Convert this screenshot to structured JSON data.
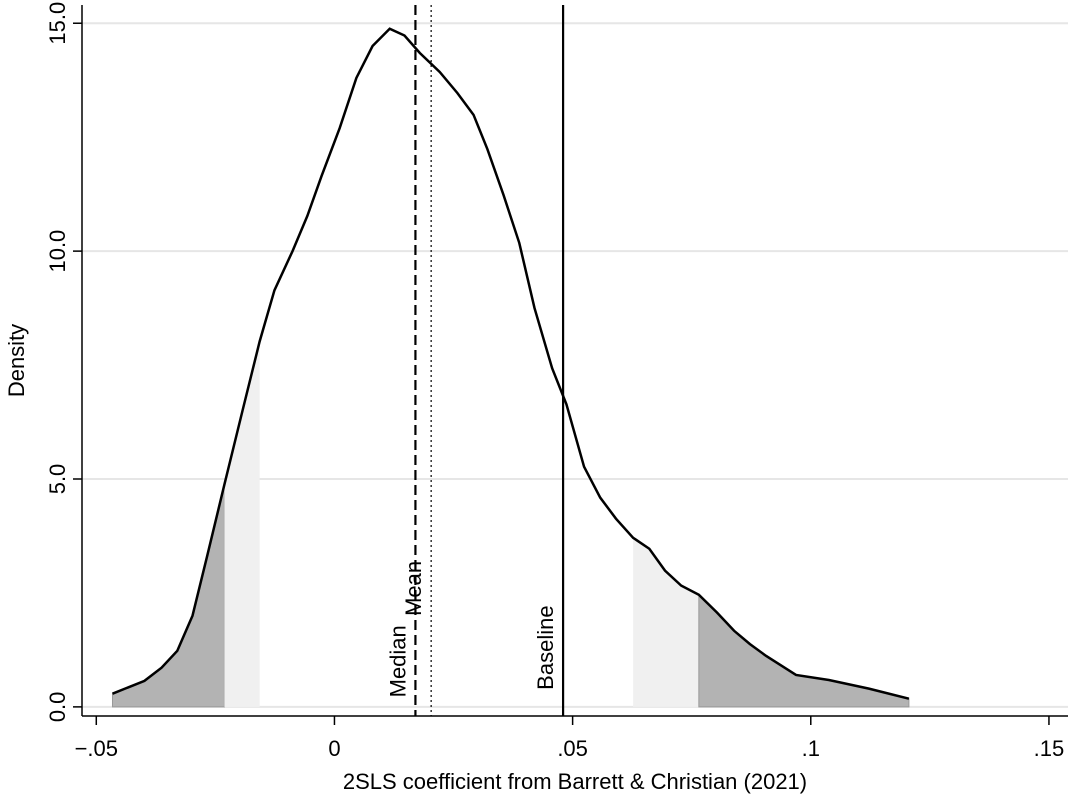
{
  "chart_data": {
    "type": "line",
    "x_label": "2SLS coefficient from Barrett & Christian (2021)",
    "y_label": "Density",
    "xlim": [
      -0.053,
      0.154
    ],
    "ylim": [
      -0.2,
      15.4
    ],
    "xticks": [
      {
        "value": -0.05,
        "label": "−.05"
      },
      0,
      {
        "value": 0.05,
        "label": ".05"
      },
      {
        "value": 0.1,
        "label": ".1"
      },
      {
        "value": 0.15,
        "label": ".15"
      }
    ],
    "yticks": [
      {
        "value": 0,
        "label": "0.0"
      },
      {
        "value": 5,
        "label": "5.0"
      },
      {
        "value": 10,
        "label": "10.0"
      },
      {
        "value": 15,
        "label": "15.0"
      }
    ],
    "grid": true,
    "series": [
      {
        "color": "#000000",
        "x": [
          -0.0466,
          -0.0399,
          -0.0363,
          -0.033,
          -0.0298,
          -0.0267,
          -0.0231,
          -0.0193,
          -0.0157,
          -0.0126,
          -0.0088,
          -0.0057,
          -0.0027,
          0.0011,
          0.0046,
          0.008,
          0.0116,
          0.0147,
          0.0179,
          0.0221,
          0.0258,
          0.0292,
          0.0321,
          0.0355,
          0.0388,
          0.042,
          0.0457,
          0.0487,
          0.0524,
          0.0558,
          0.0591,
          0.0627,
          0.0661,
          0.0694,
          0.0728,
          0.0765,
          0.0803,
          0.0839,
          0.0872,
          0.0906,
          0.0969,
          0.1038,
          0.1122,
          0.1206
        ],
        "values": [
          0.29,
          0.57,
          0.86,
          1.23,
          2.0,
          3.32,
          4.88,
          6.5,
          8.02,
          9.14,
          10.0,
          10.77,
          11.65,
          12.7,
          13.8,
          14.5,
          14.88,
          14.73,
          14.35,
          13.93,
          13.47,
          12.99,
          12.24,
          11.23,
          10.18,
          8.75,
          7.43,
          6.64,
          5.27,
          4.59,
          4.13,
          3.71,
          3.47,
          2.99,
          2.66,
          2.46,
          2.07,
          1.67,
          1.38,
          1.12,
          0.7,
          0.59,
          0.4,
          0.18
        ]
      }
    ],
    "shaded_regions": [
      {
        "from": -0.0466,
        "to": -0.0231,
        "color": "#b3b3b3"
      },
      {
        "from": -0.0231,
        "to": -0.0157,
        "color": "#f0f0f0"
      },
      {
        "from": 0.0627,
        "to": 0.0765,
        "color": "#f0f0f0"
      },
      {
        "from": 0.0765,
        "to": 0.1206,
        "color": "#b3b3b3"
      }
    ],
    "reference_lines": [
      {
        "name": "Median",
        "x": 0.017,
        "style": "dashed",
        "label_y": 1.0
      },
      {
        "name": "Mean",
        "x": 0.0203,
        "style": "dotted",
        "label_y": 2.6
      },
      {
        "name": "Baseline",
        "x": 0.048,
        "style": "solid",
        "label_y": 1.3
      }
    ]
  }
}
